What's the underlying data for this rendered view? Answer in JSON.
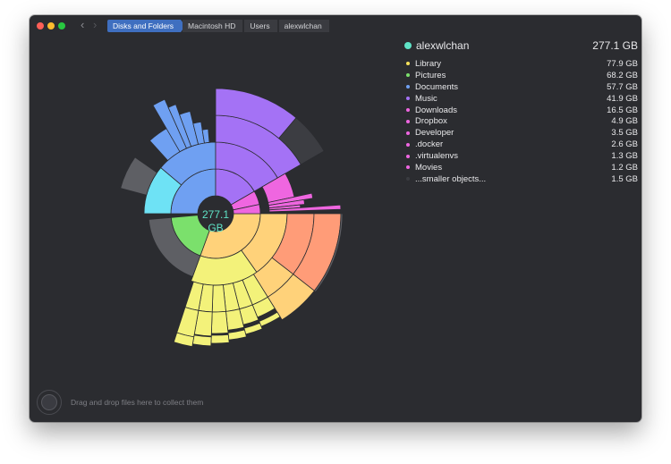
{
  "toolbar": {
    "back_icon": "chevron-left-icon",
    "forward_icon": "chevron-right-icon"
  },
  "breadcrumbs": [
    "Disks and Folders",
    "Macintosh HD",
    "Users",
    "alexwlchan"
  ],
  "center": {
    "line1": "277.1",
    "line2": "GB"
  },
  "legend": {
    "folder": "alexwlchan",
    "total": "277.1 GB",
    "accent": "#5fe3c6",
    "items": [
      {
        "label": "Library",
        "size": "77.9 GB",
        "color": "#f5e15a"
      },
      {
        "label": "Pictures",
        "size": "68.2 GB",
        "color": "#7be06c"
      },
      {
        "label": "Documents",
        "size": "57.7 GB",
        "color": "#6fa0f2"
      },
      {
        "label": "Music",
        "size": "41.9 GB",
        "color": "#a472f5"
      },
      {
        "label": "Downloads",
        "size": "16.5 GB",
        "color": "#ef66e0"
      },
      {
        "label": "Dropbox",
        "size": "4.9 GB",
        "color": "#ef66e0"
      },
      {
        "label": "Developer",
        "size": "3.5 GB",
        "color": "#ef66e0"
      },
      {
        "label": ".docker",
        "size": "2.6 GB",
        "color": "#ef66e0"
      },
      {
        "label": ".virtualenvs",
        "size": "1.3 GB",
        "color": "#ef66e0"
      },
      {
        "label": "Movies",
        "size": "1.2 GB",
        "color": "#ef66e0"
      },
      {
        "label": "...smaller objects...",
        "size": "1.5 GB",
        "color": "#3a3b40"
      }
    ]
  },
  "dropzone": {
    "text": "Drag and drop files here to collect them"
  }
}
